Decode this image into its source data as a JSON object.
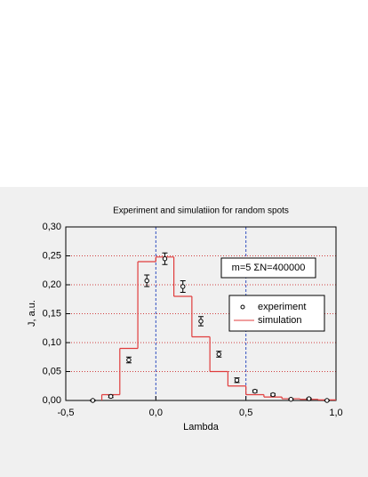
{
  "chart_data": {
    "type": "histogram",
    "title": "Experiment and simulatiion for random spots",
    "x_label": "Lambda",
    "y_label": "J, a.u.",
    "annotation": "m=5 ΣN=400000",
    "xlim": [
      -0.5,
      1.0
    ],
    "xticks": [
      {
        "value": -0.5,
        "label": "-0,5"
      },
      {
        "value": 0.0,
        "label": "0,0"
      },
      {
        "value": 0.5,
        "label": "0,5"
      },
      {
        "value": 1.0,
        "label": "1,0"
      }
    ],
    "ylim": [
      0,
      0.3
    ],
    "yticks": [
      {
        "value": 0,
        "label": "0,00"
      },
      {
        "value": 0.05,
        "label": "0,05"
      },
      {
        "value": 0.1,
        "label": "0,10"
      },
      {
        "value": 0.15,
        "label": "0,15"
      },
      {
        "value": 0.2,
        "label": "0,20"
      },
      {
        "value": 0.25,
        "label": "0,25"
      },
      {
        "value": 0.3,
        "label": "0,30"
      }
    ],
    "grid": true,
    "legend_position": "right",
    "experiment": {
      "name": "experiment",
      "color": "#000000",
      "x": [
        -0.35,
        -0.25,
        -0.15,
        -0.05,
        0.05,
        0.15,
        0.25,
        0.35,
        0.45,
        0.55,
        0.65,
        0.75,
        0.85,
        0.95
      ],
      "values": [
        0.0,
        0.007,
        0.07,
        0.207,
        0.245,
        0.197,
        0.137,
        0.08,
        0.035,
        0.016,
        0.01,
        0.002,
        0.003,
        0.0
      ],
      "errors": [
        0.001,
        0.002,
        0.005,
        0.01,
        0.01,
        0.01,
        0.008,
        0.005,
        0.004,
        0.002,
        0.002,
        0.001,
        0.001,
        0.001
      ]
    },
    "simulation": {
      "name": "simulation",
      "color": "#e03c3c",
      "bins": [
        -0.3,
        -0.2,
        -0.1,
        0.0,
        0.1,
        0.2,
        0.3,
        0.4,
        0.5,
        0.6,
        0.7,
        0.8,
        0.9,
        1.0
      ],
      "counts": [
        0.01,
        0.09,
        0.24,
        0.248,
        0.18,
        0.11,
        0.05,
        0.025,
        0.01,
        0.006,
        0.003,
        0.002,
        0.001
      ]
    }
  }
}
